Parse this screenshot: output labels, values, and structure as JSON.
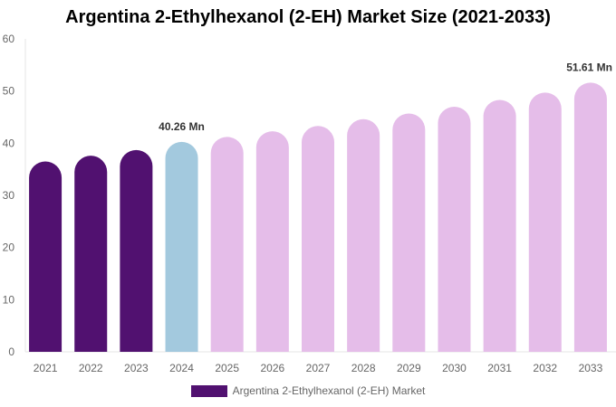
{
  "chart_data": {
    "type": "bar",
    "title": "Argentina 2-Ethylhexanol (2-EH) Market Size (2021-2033)",
    "categories": [
      "2021",
      "2022",
      "2023",
      "2024",
      "2025",
      "2026",
      "2027",
      "2028",
      "2029",
      "2030",
      "2031",
      "2032",
      "2033"
    ],
    "series": [
      {
        "name": "Argentina 2-Ethylhexanol (2-EH) Market",
        "values": [
          36.5,
          37.6,
          38.7,
          40.26,
          41.2,
          42.3,
          43.3,
          44.6,
          45.7,
          47.0,
          48.3,
          49.7,
          51.61
        ]
      }
    ],
    "ylim": [
      0,
      60
    ],
    "yticks": [
      0,
      10,
      20,
      30,
      40,
      50,
      60
    ],
    "xlabel": "",
    "ylabel": "",
    "legend": "bottom-center",
    "grid": false,
    "annotations": [
      {
        "category": "2024",
        "text": "40.26 Mn"
      },
      {
        "category": "2033",
        "text": "51.61 Mn"
      }
    ],
    "bar_colors": {
      "historical": "#511170",
      "current": "#a3c9de",
      "forecast": "#e5bde9"
    },
    "color_by_category": [
      "historical",
      "historical",
      "historical",
      "current",
      "forecast",
      "forecast",
      "forecast",
      "forecast",
      "forecast",
      "forecast",
      "forecast",
      "forecast",
      "forecast"
    ],
    "legend_color": "#511170"
  }
}
